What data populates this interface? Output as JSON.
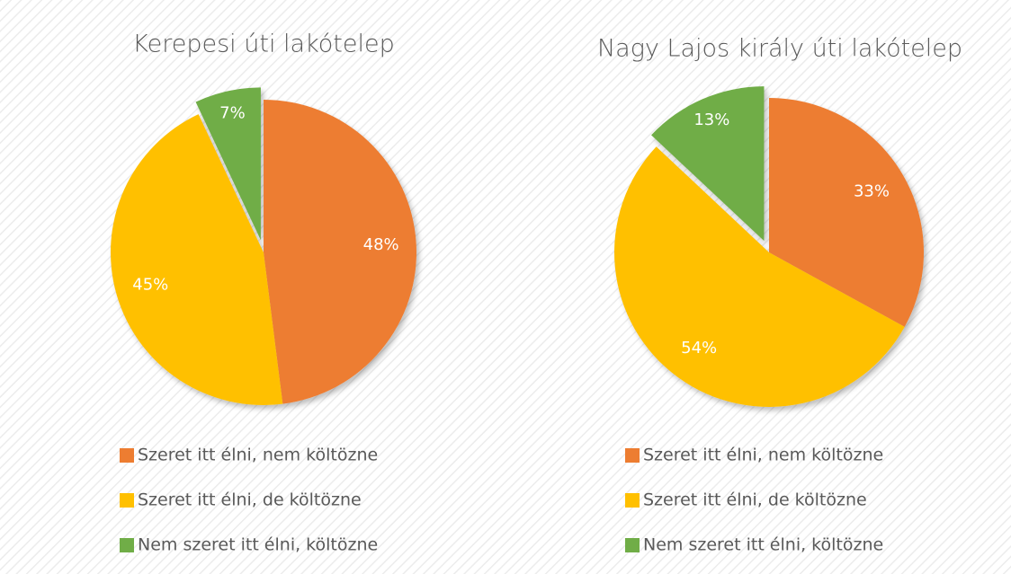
{
  "chart_data": [
    {
      "type": "pie",
      "title": "Kerepesi úti lakótelep",
      "categories": [
        "Szeret itt élni, nem költözne",
        "Szeret itt élni, de költözne",
        "Nem szeret itt élni, költözne"
      ],
      "values": [
        48,
        45,
        7
      ],
      "value_labels": [
        "48%",
        "45%",
        "7%"
      ],
      "colors": [
        "#ED7D31",
        "#FFC000",
        "#70AD47"
      ],
      "explode": [
        false,
        false,
        true
      ],
      "legend": "bottom"
    },
    {
      "type": "pie",
      "title": "Nagy Lajos király úti lakótelep",
      "categories": [
        "Szeret itt élni, nem költözne",
        "Szeret itt élni, de költözne",
        "Nem szeret itt élni, költözne"
      ],
      "values": [
        33,
        54,
        13
      ],
      "value_labels": [
        "33%",
        "54%",
        "13%"
      ],
      "colors": [
        "#ED7D31",
        "#FFC000",
        "#70AD47"
      ],
      "explode": [
        false,
        false,
        true
      ],
      "legend": "bottom"
    }
  ]
}
